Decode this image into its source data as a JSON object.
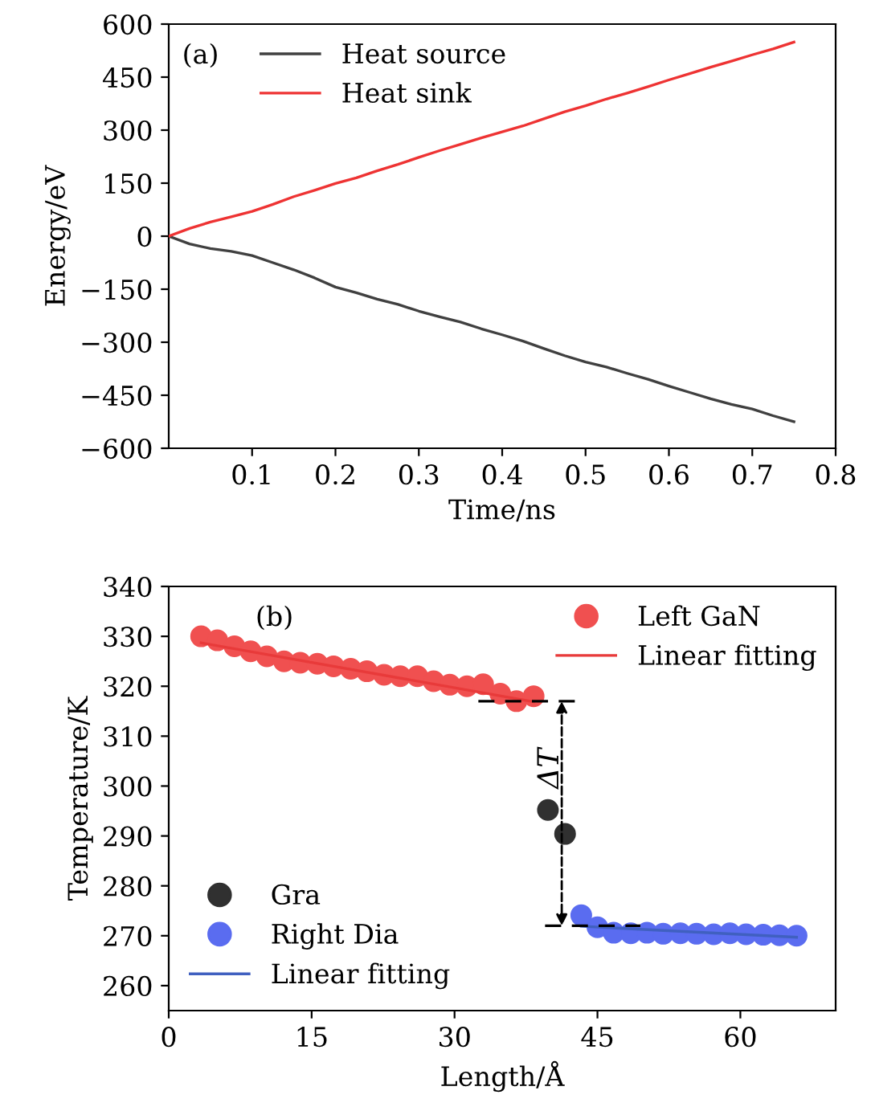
{
  "chart_data": [
    {
      "type": "line",
      "xlabel": "Time/ns",
      "ylabel": "Energy/eV",
      "xlim": [
        0,
        0.8
      ],
      "xticks": [
        0.1,
        0.2,
        0.3,
        0.4,
        0.5,
        0.6,
        0.7,
        0.8
      ],
      "ylim": [
        -600,
        600
      ],
      "yticks": [
        {
          "value": -600,
          "label": "−600"
        },
        {
          "value": -450,
          "label": "−450"
        },
        {
          "value": -300,
          "label": "−300"
        },
        {
          "value": -150,
          "label": "−150"
        },
        0,
        150,
        300,
        450,
        600
      ],
      "grid": false,
      "legend": [
        "top left"
      ],
      "marker": "none",
      "annotations": [
        "(a)"
      ],
      "x": [
        0,
        0.025,
        0.05,
        0.075,
        0.1,
        0.125,
        0.15,
        0.175,
        0.2,
        0.225,
        0.25,
        0.275,
        0.3,
        0.325,
        0.35,
        0.375,
        0.4,
        0.425,
        0.45,
        0.475,
        0.5,
        0.525,
        0.55,
        0.575,
        0.6,
        0.625,
        0.65,
        0.675,
        0.7,
        0.725,
        0.75
      ],
      "series": [
        {
          "name": "Heat source",
          "color": "#404040",
          "values": [
            0,
            -22,
            -35,
            -43,
            -55,
            -75,
            -95,
            -118,
            -144,
            -160,
            -178,
            -193,
            -212,
            -228,
            -243,
            -262,
            -279,
            -297,
            -318,
            -338,
            -356,
            -370,
            -388,
            -405,
            -424,
            -442,
            -460,
            -476,
            -489,
            -508,
            -525
          ]
        },
        {
          "name": "Heat sink",
          "color": "#ee3333",
          "values": [
            0,
            22,
            40,
            55,
            70,
            90,
            112,
            130,
            149,
            165,
            185,
            203,
            223,
            242,
            260,
            278,
            295,
            312,
            332,
            352,
            369,
            388,
            405,
            423,
            442,
            460,
            478,
            495,
            513,
            530,
            549
          ]
        }
      ]
    },
    {
      "type": "scatter",
      "xlabel": "Length/Å",
      "ylabel": "Temperature/K",
      "xlim": [
        0,
        70
      ],
      "xticks": [
        0,
        15,
        30,
        45,
        60
      ],
      "ylim": [
        255,
        340
      ],
      "yticks": [
        260,
        270,
        280,
        290,
        300,
        310,
        320,
        330,
        340
      ],
      "grid": false,
      "legend": [
        "top right",
        "bottom left"
      ],
      "marker": "circle",
      "annotations": [
        "(b)",
        "ΔT"
      ],
      "series": [
        {
          "name": "Left GaN",
          "color": "#f05050",
          "x": [
            3.4,
            5.1,
            6.9,
            8.6,
            10.3,
            12.1,
            13.8,
            15.6,
            17.3,
            19.1,
            20.8,
            22.6,
            24.3,
            26.1,
            27.8,
            29.5,
            31.3,
            33.0,
            34.8,
            36.5,
            38.3
          ],
          "values": [
            330,
            329.2,
            328,
            327,
            326,
            325,
            324.7,
            324.5,
            324,
            323.5,
            323,
            322.3,
            322,
            322,
            321,
            320.3,
            320,
            320.4,
            318.5,
            317,
            318
          ]
        },
        {
          "name": "Linear fitting",
          "type": "line",
          "marker": "none",
          "color": "#e83a3a",
          "x": [
            3.4,
            38.3
          ],
          "values": [
            328.7,
            316.9
          ]
        },
        {
          "name": "Gra",
          "color": "#303030",
          "x": [
            39.8,
            41.6
          ],
          "values": [
            295.2,
            290.4
          ]
        },
        {
          "name": "Right Dia",
          "color": "#5a6cf0",
          "x": [
            43.3,
            45.0,
            46.7,
            48.5,
            50.2,
            51.9,
            53.7,
            55.4,
            57.2,
            58.9,
            60.6,
            62.4,
            64.1,
            65.9
          ],
          "values": [
            274.1,
            271.7,
            270.6,
            270.5,
            270.6,
            270.4,
            270.5,
            270.4,
            270.3,
            270.5,
            270.3,
            270.2,
            270.1,
            270
          ]
        },
        {
          "name": "Linear fitting",
          "type": "line",
          "marker": "none",
          "color": "#4060c0",
          "x": [
            43.3,
            65.9
          ],
          "values": [
            271.9,
            269.7
          ]
        },
        {
          "type": "line",
          "marker": "none",
          "line_style": "dashed",
          "color": "#000000",
          "x": [
            32.5,
            43.0
          ],
          "values": [
            317,
            317
          ]
        },
        {
          "type": "line",
          "marker": "none",
          "line_style": "dashed",
          "color": "#000000",
          "x": [
            39.5,
            49.5
          ],
          "values": [
            272,
            272
          ]
        }
      ]
    }
  ]
}
